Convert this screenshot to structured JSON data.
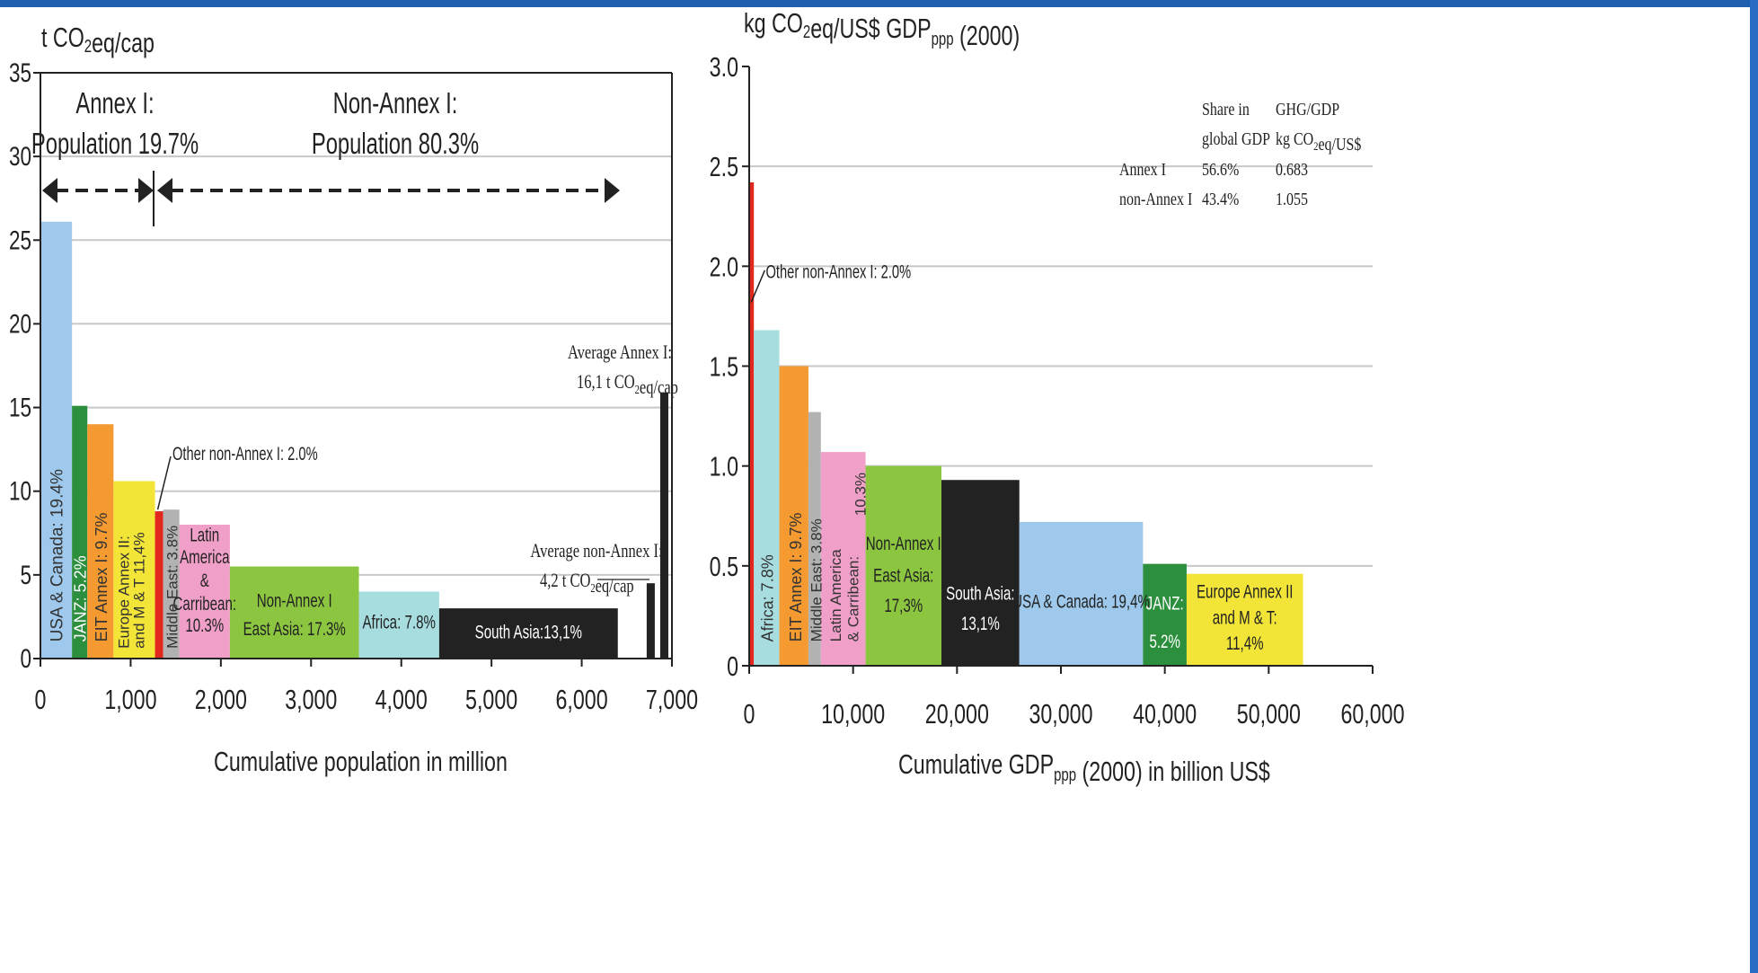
{
  "colors": {
    "top_bar": "#1f5fb0",
    "light_blue": "#9ec9ec",
    "dark_green": "#2c8f3e",
    "orange": "#f49a30",
    "yellow": "#f2e538",
    "red": "#e0281e",
    "gray": "#b2b2b2",
    "pink": "#f0a0c8",
    "lime_green": "#8cc640",
    "light_cyan": "#a8dde0",
    "black": "#222222",
    "grid": "#c8c8c8"
  },
  "chart_data": [
    {
      "type": "bar",
      "ylabel": "t CO2eq/cap",
      "xlabel": "Cumulative population in million",
      "xlim": [
        0,
        7000
      ],
      "ylim": [
        0,
        35
      ],
      "xticks": [
        "0",
        "1,000",
        "2,000",
        "3,000",
        "4,000",
        "5,000",
        "6,000",
        "7,000"
      ],
      "yticks": [
        "0",
        "5",
        "10",
        "15",
        "20",
        "25",
        "30",
        "35"
      ],
      "annotations": {
        "annex_title": "Annex I:",
        "annex_pop": "Population 19.7%",
        "nonannex_title": "Non-Annex I:",
        "nonannex_pop": "Population 80.3%",
        "other_label": "Other non-Annex I: 2.0%",
        "avg_annex_1": "Average Annex I:",
        "avg_annex_2": "16,1 t CO2eq/cap",
        "avg_nonannex_1": "Average non-Annex I:",
        "avg_nonannex_2": "4,2 t CO2eq/cap"
      },
      "bars": [
        {
          "label": "USA & Canada: 19.4%",
          "x0": 0,
          "x1": 350,
          "value": 26.1,
          "color": "#9ec9ec"
        },
        {
          "label": "JANZ: 5.2%",
          "x0": 350,
          "x1": 520,
          "value": 15.1,
          "color": "#2c8f3e"
        },
        {
          "label": "EIT Annex I: 9.7%",
          "x0": 520,
          "x1": 810,
          "value": 14.0,
          "color": "#f49a30"
        },
        {
          "label": "Europe Annex II and M & T 11.4%",
          "x0": 810,
          "x1": 1270,
          "value": 10.6,
          "color": "#f2e538"
        },
        {
          "label": "",
          "x0": 1270,
          "x1": 1360,
          "value": 8.8,
          "color": "#e0281e"
        },
        {
          "label": "Middle East: 3.8%",
          "x0": 1360,
          "x1": 1540,
          "value": 8.9,
          "color": "#b2b2b2"
        },
        {
          "label": "Latin America & Carribean: 10.3%",
          "x0": 1540,
          "x1": 2100,
          "value": 8.0,
          "color": "#f0a0c8"
        },
        {
          "label": "Non-Annex I East Asia: 17.3%",
          "x0": 2100,
          "x1": 3530,
          "value": 5.5,
          "color": "#8cc640"
        },
        {
          "label": "Africa: 7.8%",
          "x0": 3530,
          "x1": 4420,
          "value": 4.0,
          "color": "#a8dde0"
        },
        {
          "label": "South Asia:13,1%",
          "x0": 4420,
          "x1": 6400,
          "value": 3.0,
          "color": "#222222"
        },
        {
          "label": "",
          "x0": 6720,
          "x1": 6810,
          "value": 4.5,
          "color": "#222222"
        },
        {
          "label": "",
          "x0": 6870,
          "x1": 6960,
          "value": 15.9,
          "color": "#222222"
        }
      ]
    },
    {
      "type": "bar",
      "ylabel": "kg CO2eq/US$ GDPppp (2000)",
      "xlabel": "Cumulative GDPppp (2000) in billion US$",
      "xlim": [
        0,
        60000
      ],
      "ylim": [
        0,
        3.0
      ],
      "xticks": [
        "0",
        "10,000",
        "20,000",
        "30,000",
        "40,000",
        "50,000",
        "60,000"
      ],
      "yticks": [
        "0",
        "0.5",
        "1.0",
        "1.5",
        "2.0",
        "2.5",
        "3.0"
      ],
      "annotations": {
        "other_label": "Other non-Annex I: 2.0%"
      },
      "table": {
        "headers": [
          "Share in",
          "global GDP",
          "GHG/GDP",
          "kg CO2eq/US$"
        ],
        "rows": [
          {
            "name": "Annex I",
            "share": "56.6%",
            "ratio": "0.683"
          },
          {
            "name": "non-Annex I",
            "share": "43.4%",
            "ratio": "1.055"
          }
        ]
      },
      "bars": [
        {
          "label": "",
          "x0": 0,
          "x1": 450,
          "value": 2.42,
          "color": "#e0281e"
        },
        {
          "label": "Africa: 7.8%",
          "x0": 450,
          "x1": 2900,
          "value": 1.68,
          "color": "#a8dde0"
        },
        {
          "label": "EIT Annex I: 9.7%",
          "x0": 2900,
          "x1": 5700,
          "value": 1.5,
          "color": "#f49a30"
        },
        {
          "label": "Middle East: 3.8%",
          "x0": 5700,
          "x1": 6900,
          "value": 1.27,
          "color": "#b2b2b2"
        },
        {
          "label": "Latin America & Carribean: 10.3%",
          "x0": 6900,
          "x1": 11200,
          "value": 1.07,
          "color": "#f0a0c8"
        },
        {
          "label": "Non-Annex I East Asia: 17,3%",
          "x0": 11200,
          "x1": 18500,
          "value": 1.0,
          "color": "#8cc640"
        },
        {
          "label": "South Asia: 13,1%",
          "x0": 18500,
          "x1": 26000,
          "value": 0.93,
          "color": "#222222"
        },
        {
          "label": "USA & Canada: 19,4%",
          "x0": 26000,
          "x1": 37900,
          "value": 0.72,
          "color": "#9ec9ec"
        },
        {
          "label": "JANZ: 5.2%",
          "x0": 37900,
          "x1": 42100,
          "value": 0.51,
          "color": "#2c8f3e"
        },
        {
          "label": "Europe Annex II and M & T: 11,4%",
          "x0": 42100,
          "x1": 53300,
          "value": 0.46,
          "color": "#f2e538"
        }
      ]
    }
  ]
}
